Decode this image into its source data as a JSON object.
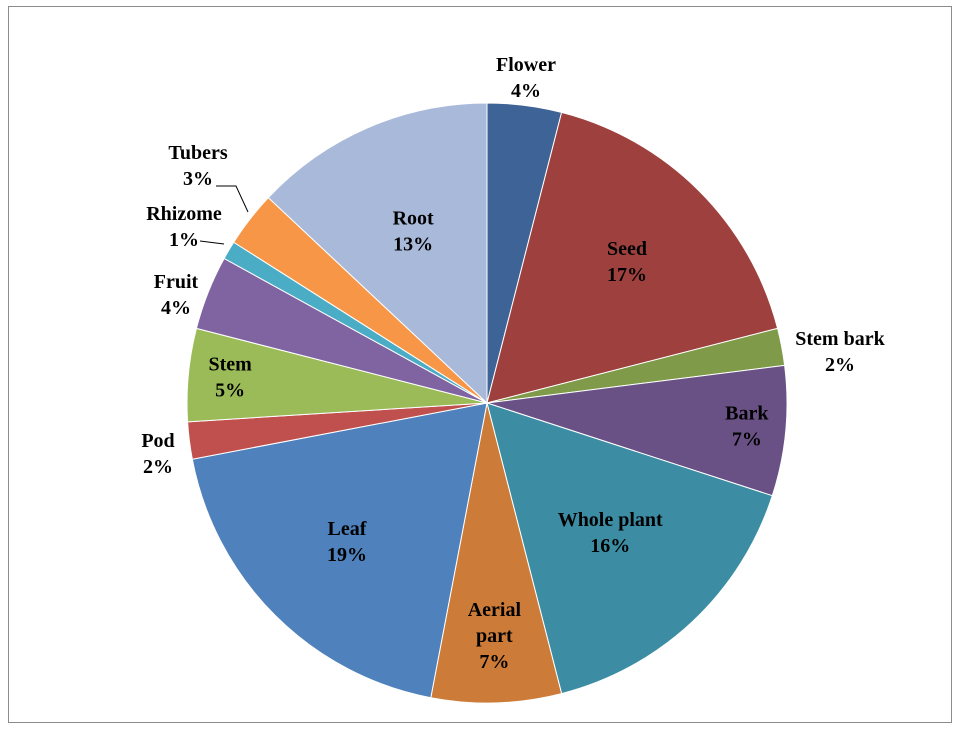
{
  "chart_data": {
    "type": "pie",
    "title": "",
    "slices": [
      {
        "label": "Flower",
        "pct_text": "4%",
        "value": 4,
        "color": "#3E6497"
      },
      {
        "label": "Seed",
        "pct_text": "17%",
        "value": 17,
        "color": "#9E413E"
      },
      {
        "label": "Stem bark",
        "pct_text": "2%",
        "value": 2,
        "color": "#7F9A48"
      },
      {
        "label": "Bark",
        "pct_text": "7%",
        "value": 7,
        "color": "#695185"
      },
      {
        "label": "Whole plant",
        "pct_text": "16%",
        "value": 16,
        "color": "#3C8DA3"
      },
      {
        "label": "Aerial part",
        "pct_text": "7%",
        "value": 7,
        "color": "#CC7B38"
      },
      {
        "label": "Leaf",
        "pct_text": "19%",
        "value": 19,
        "color": "#4F81BD"
      },
      {
        "label": "Pod",
        "pct_text": "2%",
        "value": 2,
        "color": "#C0504D"
      },
      {
        "label": "Stem",
        "pct_text": "5%",
        "value": 5,
        "color": "#9BBB59"
      },
      {
        "label": "Fruit",
        "pct_text": "4%",
        "value": 4,
        "color": "#8064A2"
      },
      {
        "label": "Rhizome",
        "pct_text": "1%",
        "value": 1,
        "color": "#4BACC6"
      },
      {
        "label": "Tubers",
        "pct_text": "3%",
        "value": 3,
        "color": "#F79646"
      },
      {
        "label": "Root",
        "pct_text": "13%",
        "value": 13,
        "color": "#A9B9D9"
      }
    ]
  }
}
